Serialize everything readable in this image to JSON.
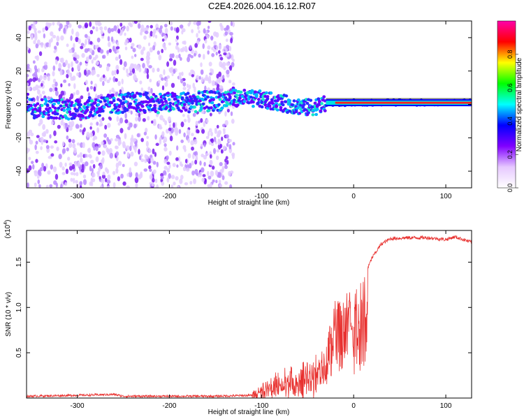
{
  "title": "C2E4.2026.004.16.12.R07",
  "chart_data": [
    {
      "type": "heatmap",
      "name": "spectrogram",
      "xlabel": "Height of straight line (km)",
      "ylabel": "Frequency (Hz)",
      "xlim": [
        -355,
        128
      ],
      "ylim": [
        -50,
        50
      ],
      "xticks": [
        -300,
        -200,
        -100,
        0,
        100
      ],
      "yticks": [
        -40,
        -20,
        0,
        20,
        40
      ],
      "colorbar": {
        "label": "Normalized spectral amplitude",
        "ticks": [
          0.0,
          0.2,
          0.4,
          0.6,
          0.8
        ],
        "range": [
          0,
          1
        ],
        "colors": [
          "#ffffff",
          "#e6c8ff",
          "#8000ff",
          "#0000ff",
          "#00ffff",
          "#00ff00",
          "#ffff00",
          "#ff0000",
          "#ff00aa"
        ]
      },
      "ridge_center_hz": [
        {
          "x": -350,
          "y": -2
        },
        {
          "x": -300,
          "y": -3
        },
        {
          "x": -250,
          "y": 1
        },
        {
          "x": -200,
          "y": 1
        },
        {
          "x": -150,
          "y": 2
        },
        {
          "x": -130,
          "y": 4
        },
        {
          "x": -100,
          "y": 3
        },
        {
          "x": -70,
          "y": 0
        },
        {
          "x": -50,
          "y": -2
        },
        {
          "x": -30,
          "y": 0
        },
        {
          "x": 0,
          "y": 1
        },
        {
          "x": 50,
          "y": 1
        },
        {
          "x": 100,
          "y": 1
        },
        {
          "x": 128,
          "y": 1
        }
      ],
      "noise_region_km": [
        -355,
        -130
      ]
    },
    {
      "type": "line",
      "name": "snr",
      "xlabel": "Height of straight line (km)",
      "ylabel": "SNR (10 * v/v)",
      "y_multiplier": "(x10^4)",
      "exponent_base": "(x10",
      "exponent_power": "4",
      "xlim": [
        -355,
        128
      ],
      "ylim": [
        0,
        1.85
      ],
      "xticks": [
        -300,
        -200,
        -100,
        0,
        100
      ],
      "yticks": [
        0.5,
        1.0,
        1.5
      ],
      "ytick_labels": [
        "0.5",
        "1.0",
        "1.5"
      ],
      "color": "#e8312f",
      "x": [
        -355,
        -300,
        -260,
        -250,
        -200,
        -150,
        -110,
        -100,
        -80,
        -60,
        -40,
        -30,
        -20,
        -10,
        0,
        10,
        20,
        30,
        40,
        60,
        80,
        100,
        110,
        128
      ],
      "y": [
        0.02,
        0.03,
        0.04,
        0.02,
        0.02,
        0.02,
        0.03,
        0.12,
        0.28,
        0.32,
        0.45,
        0.65,
        1.05,
        1.12,
        1.2,
        1.3,
        1.55,
        1.7,
        1.76,
        1.77,
        1.77,
        1.75,
        1.78,
        1.72
      ]
    }
  ]
}
